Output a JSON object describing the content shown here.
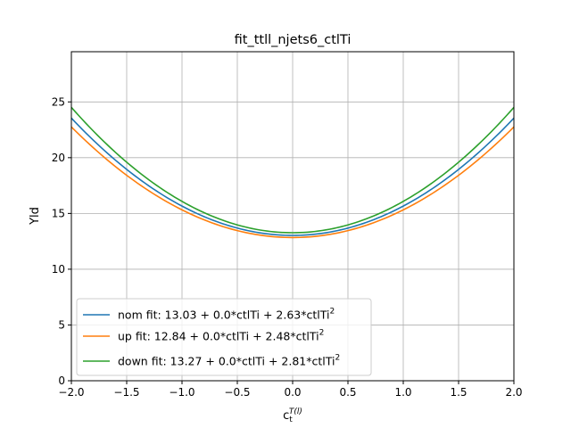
{
  "chart_data": {
    "type": "line",
    "title": "fit_ttll_njets6_ctlTi",
    "xlabel_base": "c",
    "xlabel_sub": "t",
    "xlabel_sup": "T(l)",
    "ylabel": "Yld",
    "xlim": [
      -2.0,
      2.0
    ],
    "ylim": [
      0,
      29.5
    ],
    "grid": true,
    "legend_position": "lower-left",
    "x_ticks": [
      -2.0,
      -1.5,
      -1.0,
      -0.5,
      0.0,
      0.5,
      1.0,
      1.5,
      2.0
    ],
    "x_tick_labels": [
      "−2.0",
      "−1.5",
      "−1.0",
      "−0.5",
      "0.0",
      "0.5",
      "1.0",
      "1.5",
      "2.0"
    ],
    "y_ticks": [
      0,
      5,
      10,
      15,
      20,
      25
    ],
    "y_tick_labels": [
      "0",
      "5",
      "10",
      "15",
      "20",
      "25"
    ],
    "series": [
      {
        "name": "nom fit",
        "legend_text": "nom fit: 13.03 + 0.0*ctlTi + 2.63*ctlTi",
        "legend_sup": "2",
        "color": "#1f77b4",
        "coefficients": [
          13.03,
          0.0,
          2.63
        ]
      },
      {
        "name": "up fit",
        "legend_text": "up fit: 12.84 + 0.0*ctlTi + 2.48*ctlTi",
        "legend_sup": "2",
        "color": "#ff7f0e",
        "coefficients": [
          12.84,
          0.0,
          2.48
        ]
      },
      {
        "name": "down fit",
        "legend_text": "down fit: 13.27 + 0.0*ctlTi + 2.81*ctlTi",
        "legend_sup": "2",
        "color": "#2ca02c",
        "coefficients": [
          13.27,
          0.0,
          2.81
        ]
      }
    ]
  }
}
